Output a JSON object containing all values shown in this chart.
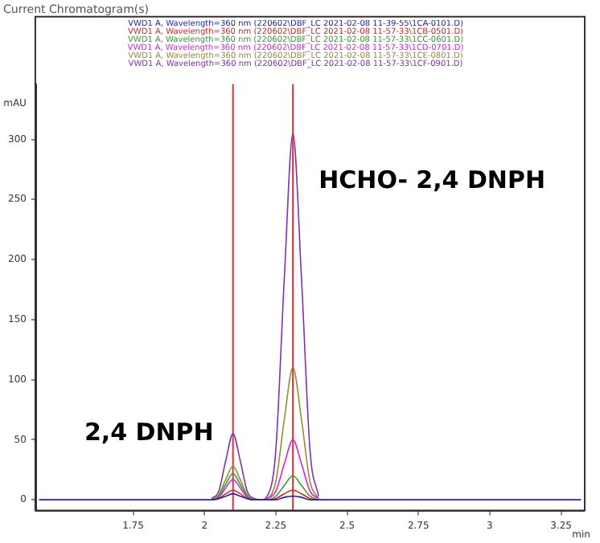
{
  "chart_data": {
    "type": "line",
    "title": "Current Chromatogram(s)",
    "xlabel": "min",
    "ylabel": "mAU",
    "x": [
      1.42,
      2.0,
      2.025,
      2.05,
      2.075,
      2.1,
      2.125,
      2.15,
      2.175,
      2.2,
      2.22,
      2.25,
      2.28,
      2.31,
      2.34,
      2.37,
      2.4,
      2.45,
      3.32
    ],
    "series": [
      {
        "name": "VWD1 A, Wavelength=360 nm (220602\\DBF_LC 2021-02-08 11-39-55\\1CA-0101.D)",
        "color": "#2020c0",
        "values": [
          0,
          0,
          0,
          1,
          3,
          5,
          3,
          1,
          0,
          0,
          0,
          0,
          2,
          3,
          2,
          0,
          0,
          0,
          0
        ]
      },
      {
        "name": "VWD1 A, Wavelength=360 nm (220602\\DBF_LC 2021-02-08 11-57-33\\1CB-0501.D)",
        "color": "#e02020",
        "values": [
          null,
          null,
          0,
          1,
          5,
          8,
          5,
          1,
          0,
          0,
          0,
          1,
          5,
          8,
          5,
          1,
          0,
          null,
          null
        ]
      },
      {
        "name": "VWD1 A, Wavelength=360 nm (220602\\DBF_LC 2021-02-08 11-57-33\\1CC-0601.D)",
        "color": "#30a030",
        "values": [
          null,
          null,
          0,
          3,
          13,
          22,
          13,
          3,
          0,
          0,
          0,
          3,
          12,
          20,
          12,
          3,
          0,
          null,
          null
        ]
      },
      {
        "name": "VWD1 A, Wavelength=360 nm (220602\\DBF_LC 2021-02-08 11-57-33\\1CD-0701.D)",
        "color": "#e020e0",
        "values": [
          null,
          null,
          0,
          2,
          10,
          17,
          10,
          2,
          0,
          0,
          1,
          7,
          30,
          50,
          30,
          7,
          1,
          null,
          null
        ]
      },
      {
        "name": "VWD1 A, Wavelength=360 nm (220602\\DBF_LC 2021-02-08 11-57-33\\1CE-0801.D)",
        "color": "#909030",
        "values": [
          null,
          null,
          0,
          4,
          17,
          28,
          17,
          4,
          0,
          0,
          1,
          15,
          67,
          110,
          67,
          15,
          1,
          null,
          null
        ]
      },
      {
        "name": "VWD1 A, Wavelength=360 nm (220602\\DBF_LC 2021-02-08 11-57-33\\1CF-0901.D)",
        "color": "#8030b0",
        "values": [
          null,
          null,
          1,
          7,
          33,
          55,
          33,
          7,
          1,
          0,
          3,
          41,
          185,
          305,
          185,
          41,
          3,
          null,
          null
        ]
      }
    ],
    "xlim": [
      1.41,
      3.33
    ],
    "xticks": [
      1.75,
      2,
      2.25,
      2.5,
      2.75,
      3,
      3.25
    ],
    "ylim": [
      -9,
      346
    ],
    "yticks": [
      0,
      50,
      100,
      150,
      200,
      250,
      300
    ],
    "ref_lines": [
      {
        "axis": "x",
        "value": 2.1,
        "color": "#e03030"
      },
      {
        "axis": "x",
        "value": 2.31,
        "color": "#e03030"
      }
    ],
    "annotations": [
      {
        "text": "2,4 DNPH",
        "x": 2.1,
        "y": 55
      },
      {
        "text": "HCHO- 2,4 DNPH",
        "x": 2.31,
        "y": 305
      }
    ],
    "legend": "top",
    "grid": false,
    "marker": "none",
    "line_style": "solid"
  }
}
